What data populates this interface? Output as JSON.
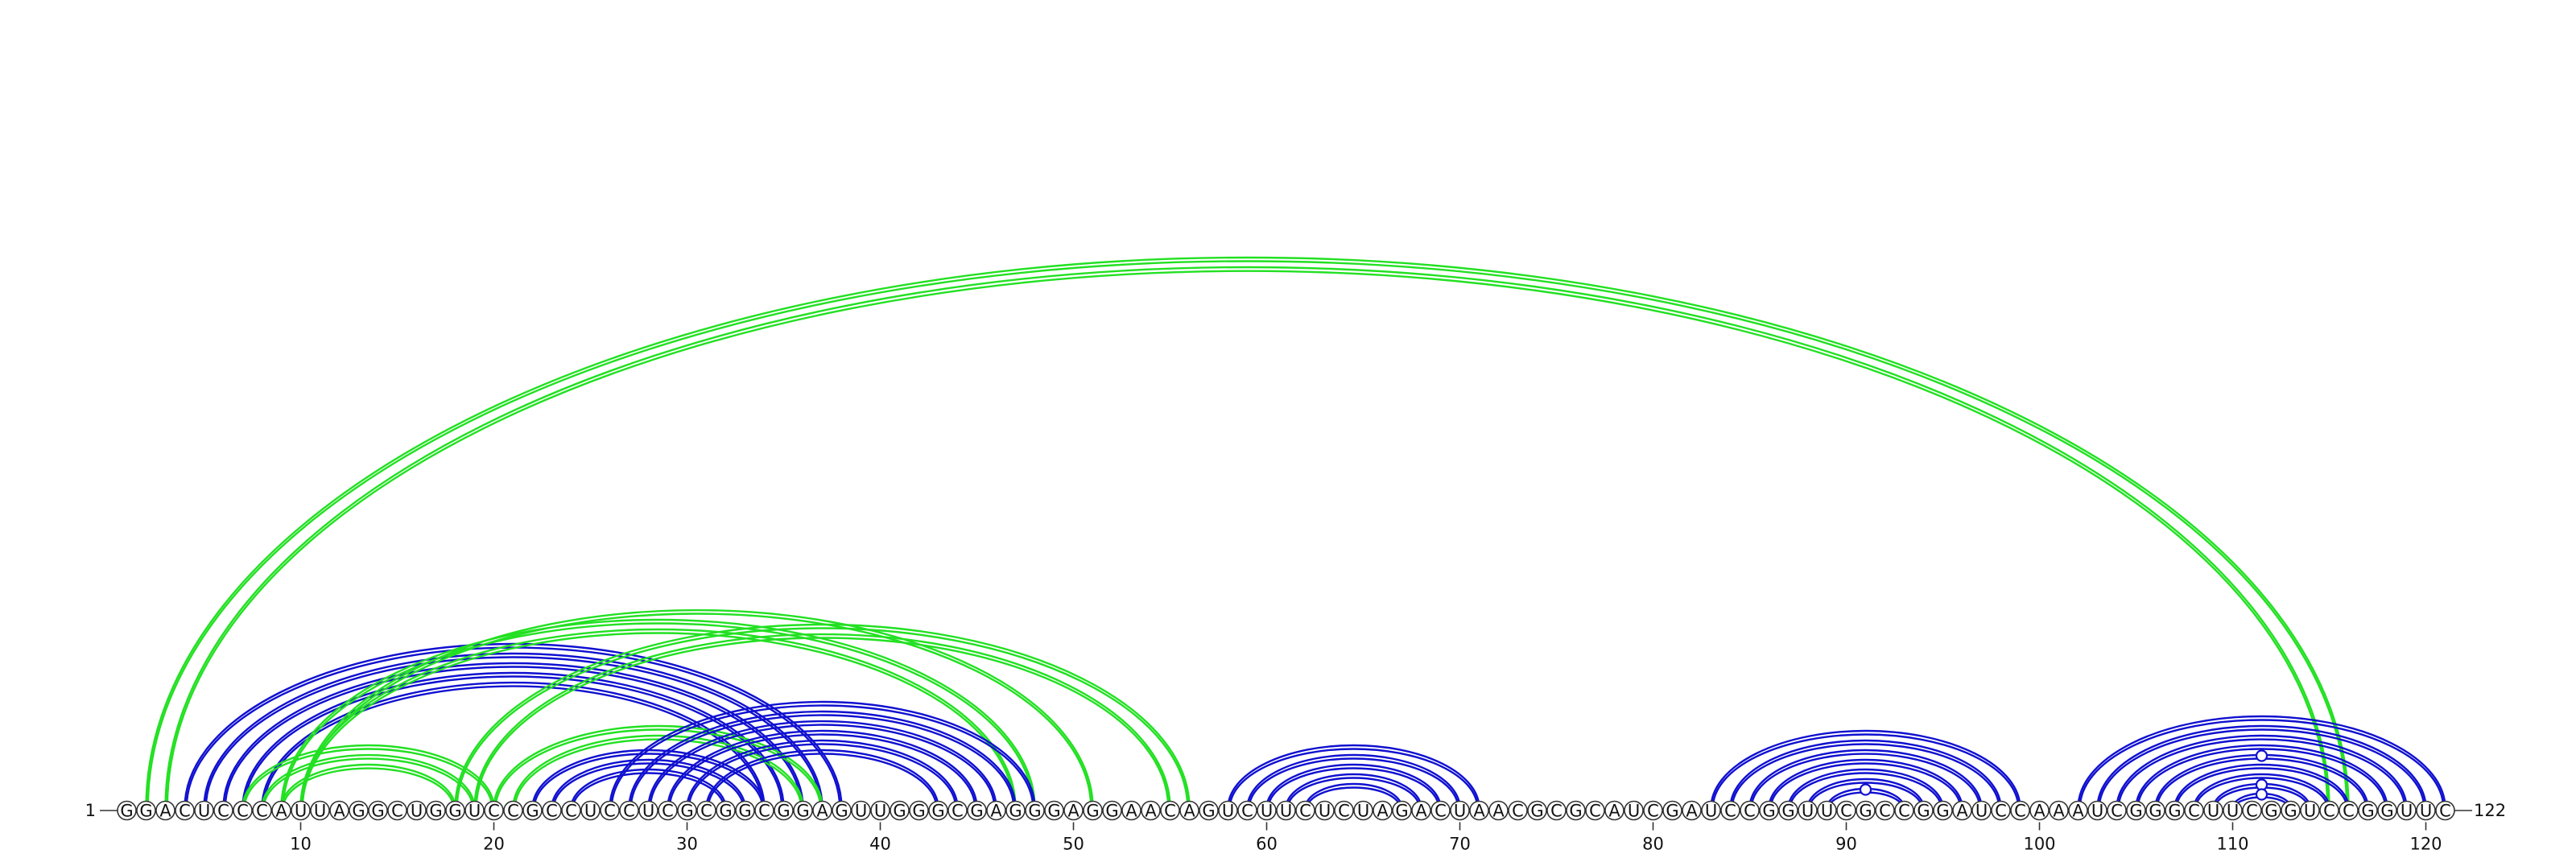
{
  "diagram": {
    "sequence": "GGACUCCCAUUAGGCUGGUCCGCCUCCUCGCGGCGGAGUUGGGCGAGGGAGGAACAGUCUUCUCUAGACUAACGCGCAUCGAUCCGGUUCGCCGGAUCCAAAUCGGGCUUCGGUCCGGUUC",
    "start_label": "1",
    "end_label": "122",
    "ticks": [
      10,
      20,
      30,
      40,
      50,
      60,
      70,
      80,
      90,
      100,
      110,
      120
    ],
    "colors": {
      "blue": "#1010d0",
      "green": "#22e022",
      "stroke": "#333333"
    },
    "stems": [
      {
        "color": "green",
        "pairs": [
          [
            2,
            116
          ],
          [
            3,
            115
          ]
        ]
      },
      {
        "color": "blue",
        "pairs": [
          [
            4,
            38
          ],
          [
            5,
            37
          ],
          [
            6,
            36
          ],
          [
            7,
            35
          ],
          [
            8,
            34
          ]
        ]
      },
      {
        "color": "green",
        "pairs": [
          [
            7,
            20
          ],
          [
            8,
            19
          ],
          [
            9,
            18
          ]
        ]
      },
      {
        "color": "green",
        "pairs": [
          [
            9,
            48
          ],
          [
            10,
            47
          ]
        ]
      },
      {
        "color": "green",
        "pairs": [
          [
            10,
            51
          ]
        ]
      },
      {
        "color": "green",
        "pairs": [
          [
            18,
            56
          ],
          [
            19,
            55
          ]
        ]
      },
      {
        "color": "green",
        "pairs": [
          [
            20,
            37
          ],
          [
            21,
            36
          ]
        ]
      },
      {
        "color": "blue",
        "pairs": [
          [
            22,
            34
          ],
          [
            23,
            33
          ],
          [
            24,
            32
          ]
        ]
      },
      {
        "color": "blue",
        "pairs": [
          [
            26,
            48
          ],
          [
            27,
            47
          ],
          [
            28,
            46
          ],
          [
            29,
            45
          ],
          [
            30,
            44
          ],
          [
            31,
            43
          ]
        ]
      },
      {
        "color": "blue",
        "pairs": [
          [
            58,
            71
          ],
          [
            59,
            70
          ],
          [
            60,
            69
          ],
          [
            61,
            68
          ],
          [
            62,
            67
          ]
        ]
      },
      {
        "color": "blue",
        "pairs": [
          [
            83,
            99
          ],
          [
            84,
            98
          ],
          [
            85,
            97
          ],
          [
            86,
            96
          ],
          [
            87,
            95
          ],
          [
            88,
            94
          ],
          [
            89,
            93
          ]
        ]
      },
      {
        "color": "blue",
        "pairs": [
          [
            102,
            121
          ],
          [
            103,
            120
          ],
          [
            104,
            119
          ],
          [
            105,
            118
          ],
          [
            106,
            117
          ],
          [
            107,
            116
          ],
          [
            108,
            115
          ],
          [
            109,
            114
          ],
          [
            110,
            113
          ]
        ]
      }
    ],
    "markers": [
      {
        "color": "blue",
        "pair": [
          89,
          93
        ]
      },
      {
        "color": "blue",
        "pair": [
          106,
          117
        ]
      },
      {
        "color": "blue",
        "pair": [
          109,
          114
        ]
      },
      {
        "color": "blue",
        "pair": [
          110,
          113
        ]
      }
    ]
  }
}
